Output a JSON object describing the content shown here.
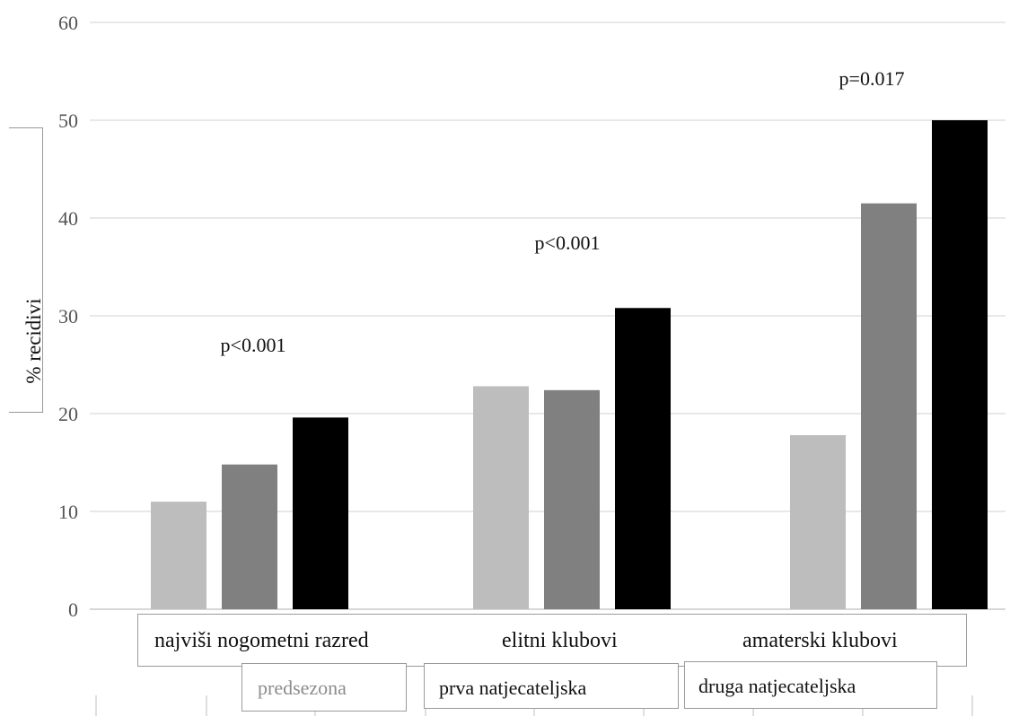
{
  "chart_data": {
    "type": "bar",
    "title": "",
    "xlabel": "",
    "ylabel": "% recidivi",
    "ylim": [
      0,
      60
    ],
    "yticks": [
      0,
      10,
      20,
      30,
      40,
      50,
      60
    ],
    "grid": true,
    "categories": [
      "najviši nogometni razred",
      "elitni klubovi",
      "amaterski klubovi"
    ],
    "series": [
      {
        "name": "predsezona",
        "color": "#bdbdbd",
        "values": [
          11,
          22.8,
          17.8
        ]
      },
      {
        "name": "prva natjecateljska",
        "color": "#808080",
        "values": [
          14.8,
          22.4,
          41.5
        ]
      },
      {
        "name": "druga natjecateljska",
        "color": "#000000",
        "values": [
          19.6,
          30.8,
          50
        ]
      }
    ],
    "annotations": [
      "p<0.001",
      "p<0.001",
      "p=0.017"
    ],
    "legend_position": "bottom"
  }
}
